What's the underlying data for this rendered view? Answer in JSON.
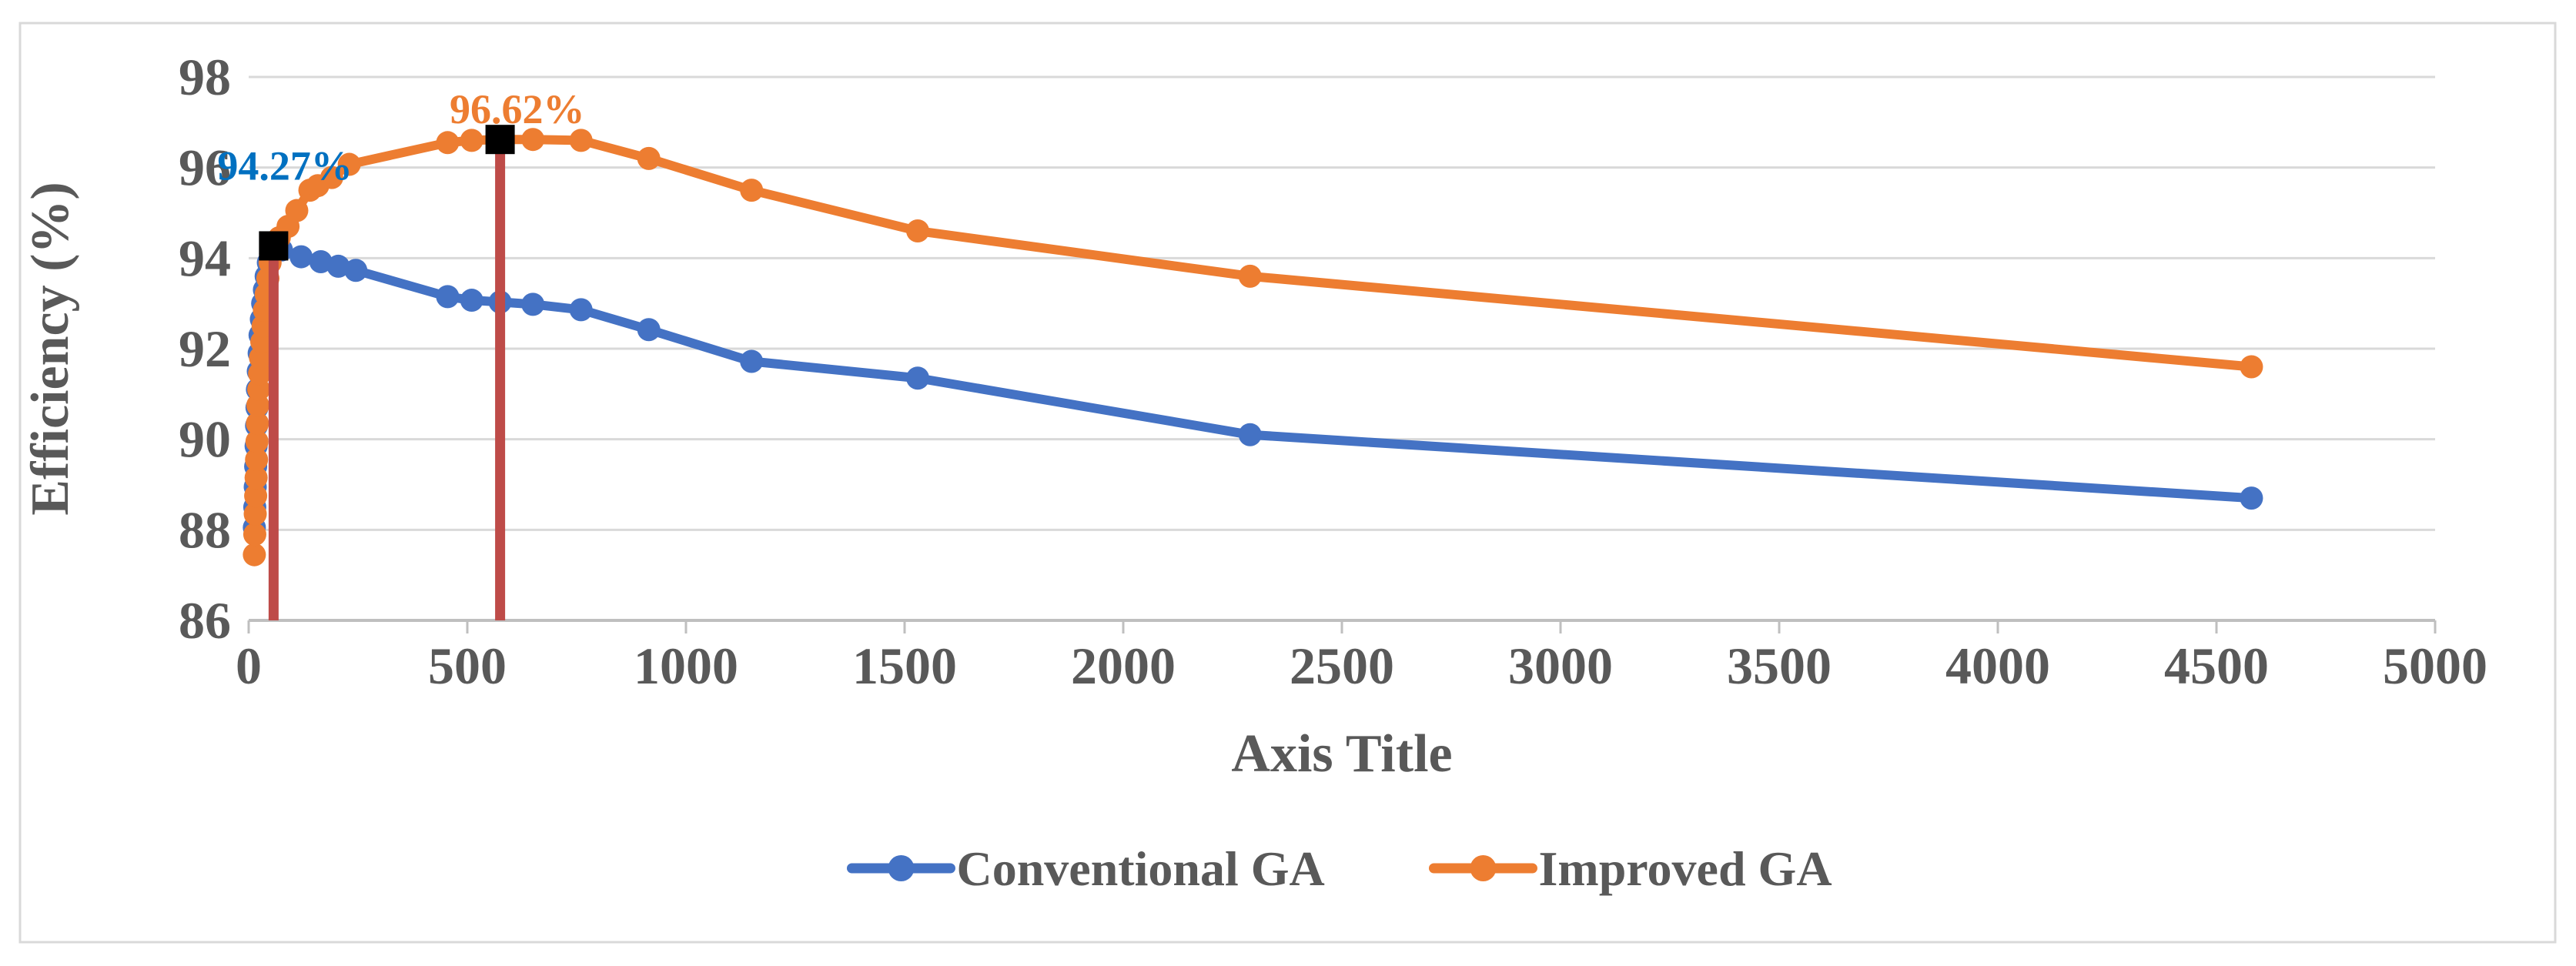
{
  "chart_data": {
    "type": "line",
    "title": "",
    "xlabel": "Axis Title",
    "ylabel": "Efficiency (%)",
    "xlim": [
      0,
      5000
    ],
    "ylim": [
      86,
      98
    ],
    "x_ticks": [
      0,
      500,
      1000,
      1500,
      2000,
      2500,
      3000,
      3500,
      4000,
      4500,
      5000
    ],
    "y_ticks": [
      86,
      88,
      90,
      92,
      94,
      96,
      98
    ],
    "grid": "horizontal-only",
    "legend_position": "bottom-center",
    "colors": {
      "gridline": "#D9D9D9",
      "axis_line": "#BFBFBF",
      "axis_text": "#595959",
      "chart_border": "#D9D9D9",
      "background": "#FFFFFF",
      "drop_line": "#BE4B48",
      "peak_marker": "#000000"
    },
    "series": [
      {
        "name": "Conventional GA",
        "color": "#4472C4",
        "points": [
          [
            13,
            88.05
          ],
          [
            14,
            88.5
          ],
          [
            15,
            88.95
          ],
          [
            16,
            89.4
          ],
          [
            17,
            89.85
          ],
          [
            18,
            90.3
          ],
          [
            19,
            90.7
          ],
          [
            20,
            91.1
          ],
          [
            22,
            91.5
          ],
          [
            24,
            91.9
          ],
          [
            26,
            92.3
          ],
          [
            29,
            92.65
          ],
          [
            32,
            93.0
          ],
          [
            36,
            93.3
          ],
          [
            40,
            93.6
          ],
          [
            45,
            93.9
          ],
          [
            50,
            94.1
          ],
          [
            57,
            94.27
          ],
          [
            75,
            94.18
          ],
          [
            120,
            94.03
          ],
          [
            165,
            93.92
          ],
          [
            205,
            93.82
          ],
          [
            245,
            93.73
          ],
          [
            455,
            93.15
          ],
          [
            510,
            93.07
          ],
          [
            575,
            93.03
          ],
          [
            650,
            92.98
          ],
          [
            760,
            92.86
          ],
          [
            915,
            92.42
          ],
          [
            1150,
            91.72
          ],
          [
            1530,
            91.35
          ],
          [
            2290,
            90.1
          ],
          [
            4580,
            88.7
          ]
        ]
      },
      {
        "name": "Improved GA",
        "color": "#ED7D31",
        "points": [
          [
            13,
            87.45
          ],
          [
            14,
            87.9
          ],
          [
            15,
            88.35
          ],
          [
            16,
            88.75
          ],
          [
            17,
            89.15
          ],
          [
            18,
            89.55
          ],
          [
            19,
            89.95
          ],
          [
            20,
            90.35
          ],
          [
            21,
            90.75
          ],
          [
            23,
            91.1
          ],
          [
            25,
            91.45
          ],
          [
            27,
            91.8
          ],
          [
            30,
            92.15
          ],
          [
            33,
            92.5
          ],
          [
            36,
            92.85
          ],
          [
            40,
            93.2
          ],
          [
            44,
            93.55
          ],
          [
            49,
            93.9
          ],
          [
            54,
            94.25
          ],
          [
            70,
            94.45
          ],
          [
            90,
            94.7
          ],
          [
            110,
            95.05
          ],
          [
            140,
            95.5
          ],
          [
            158,
            95.6
          ],
          [
            190,
            95.78
          ],
          [
            230,
            96.07
          ],
          [
            455,
            96.55
          ],
          [
            510,
            96.6
          ],
          [
            575,
            96.62
          ],
          [
            650,
            96.62
          ],
          [
            760,
            96.6
          ],
          [
            915,
            96.2
          ],
          [
            1150,
            95.5
          ],
          [
            1530,
            94.6
          ],
          [
            2290,
            93.6
          ],
          [
            4580,
            91.6
          ]
        ]
      }
    ],
    "peak_markers": [
      {
        "series": "Conventional GA",
        "x": 57,
        "y": 94.27
      },
      {
        "series": "Improved GA",
        "x": 575,
        "y": 96.62
      }
    ],
    "drop_lines": [
      {
        "x": 57,
        "y_from": 86,
        "y_to": 94.27
      },
      {
        "x": 575,
        "y_from": 86,
        "y_to": 96.62
      }
    ],
    "annotations": [
      {
        "text": "94.27%",
        "color": "#0070C0",
        "x": 83,
        "y": 96.05
      },
      {
        "text": "96.62%",
        "color": "#ED7D31",
        "x": 614,
        "y": 97.3
      }
    ]
  }
}
